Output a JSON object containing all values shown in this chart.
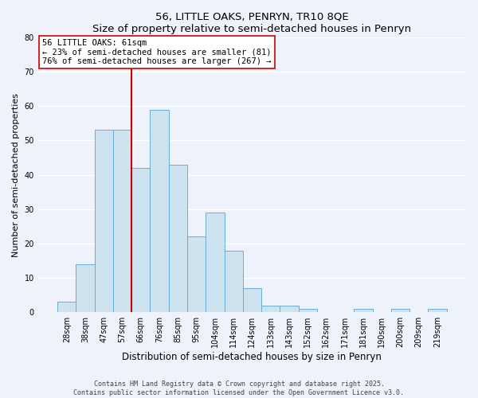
{
  "title": "56, LITTLE OAKS, PENRYN, TR10 8QE",
  "subtitle": "Size of property relative to semi-detached houses in Penryn",
  "xlabel": "Distribution of semi-detached houses by size in Penryn",
  "ylabel": "Number of semi-detached properties",
  "bar_labels": [
    "28sqm",
    "38sqm",
    "47sqm",
    "57sqm",
    "66sqm",
    "76sqm",
    "85sqm",
    "95sqm",
    "104sqm",
    "114sqm",
    "124sqm",
    "133sqm",
    "143sqm",
    "152sqm",
    "162sqm",
    "171sqm",
    "181sqm",
    "190sqm",
    "200sqm",
    "209sqm",
    "219sqm"
  ],
  "bar_values": [
    3,
    14,
    53,
    53,
    42,
    59,
    43,
    22,
    29,
    18,
    7,
    2,
    2,
    1,
    0,
    0,
    1,
    0,
    1,
    0,
    1
  ],
  "bar_color": "#cde4f0",
  "bar_edge_color": "#6aadd5",
  "vline_x": 3.5,
  "vline_color": "#cc0000",
  "ylim": [
    0,
    80
  ],
  "yticks": [
    0,
    10,
    20,
    30,
    40,
    50,
    60,
    70,
    80
  ],
  "annotation_title": "56 LITTLE OAKS: 61sqm",
  "annotation_line1": "← 23% of semi-detached houses are smaller (81)",
  "annotation_line2": "76% of semi-detached houses are larger (267) →",
  "annotation_box_color": "#ffffff",
  "annotation_box_edge": "#cc0000",
  "background_color": "#eef2fa",
  "grid_color": "#ffffff",
  "footer_line1": "Contains HM Land Registry data © Crown copyright and database right 2025.",
  "footer_line2": "Contains public sector information licensed under the Open Government Licence v3.0."
}
